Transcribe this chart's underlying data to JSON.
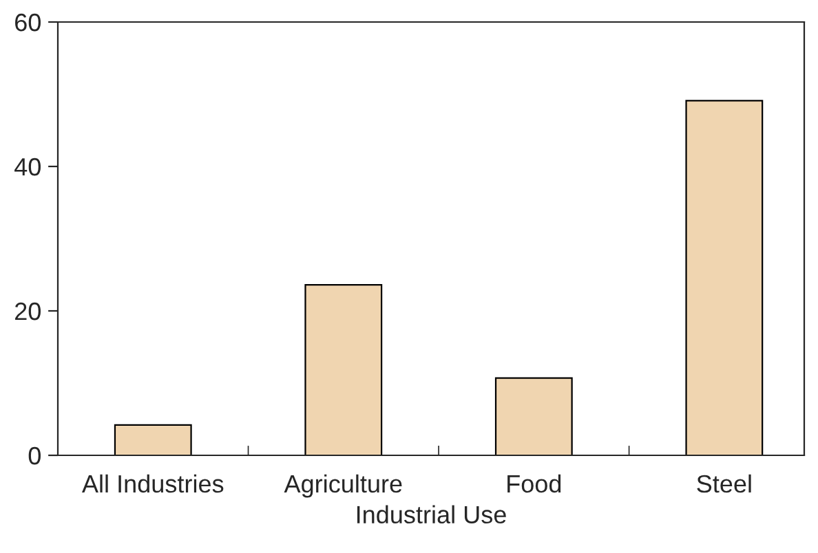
{
  "chart_data": {
    "type": "bar",
    "xlabel": "Industrial Use",
    "categories": [
      "All Industries",
      "Agriculture",
      "Food",
      "Steel"
    ],
    "values": [
      4.2,
      23.6,
      10.7,
      49.1
    ],
    "color": "#f0d5b0",
    "ylim": [
      0,
      60
    ],
    "yticks": [
      0,
      20,
      40,
      60
    ],
    "grid": false
  }
}
